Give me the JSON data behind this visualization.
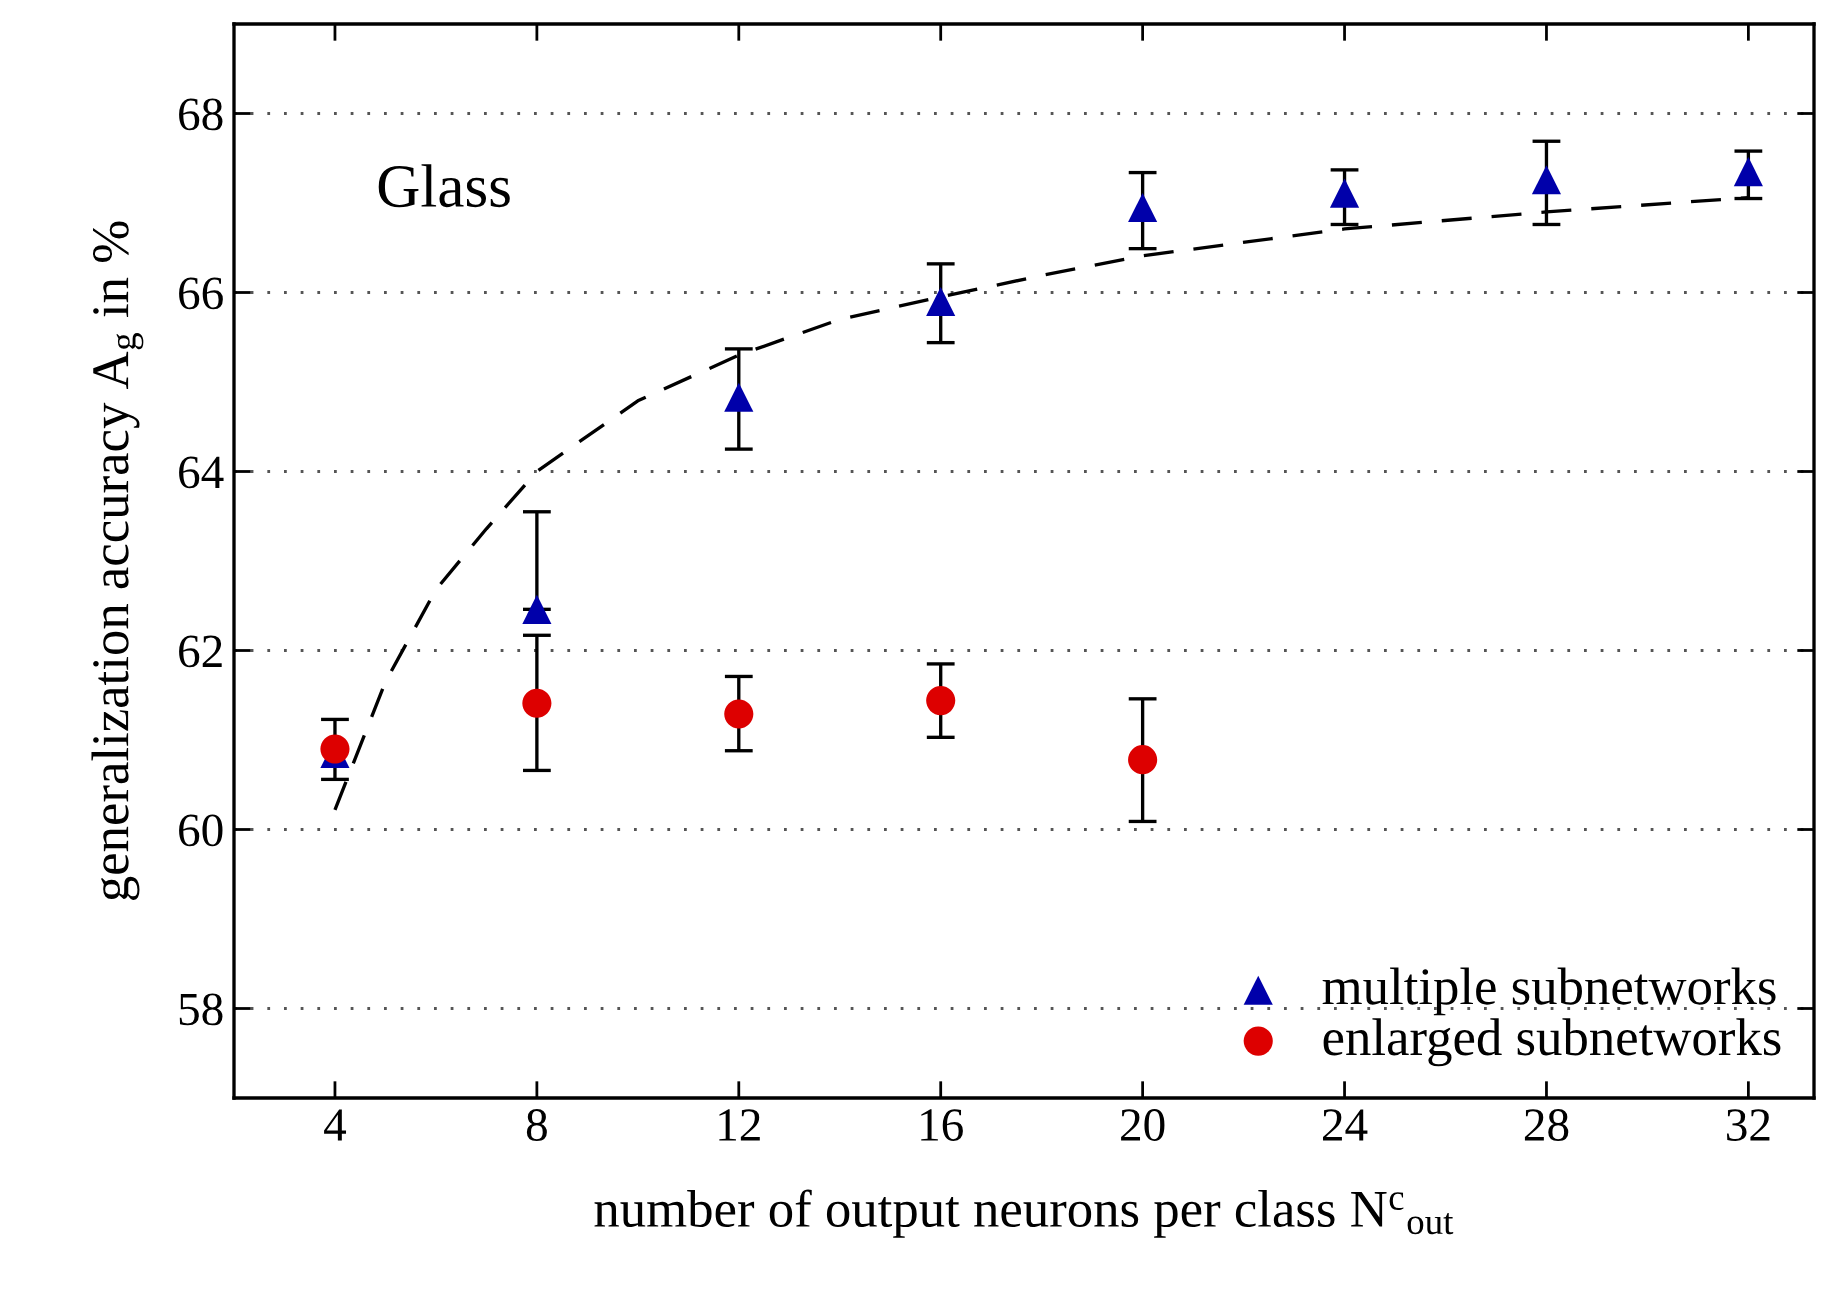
{
  "chart_data": {
    "type": "scatter",
    "xlabel": "number of output neurons per class N$^{c}$$_{out}$",
    "ylabel": "generalization accuracy A$_{g}$ in %",
    "annotations": [
      "Glass"
    ],
    "xlim": [
      2,
      33.3
    ],
    "xticks": [
      4,
      8,
      12,
      16,
      20,
      24,
      28,
      32
    ],
    "ylim": [
      57,
      69
    ],
    "yticks": [
      58,
      60,
      62,
      64,
      66,
      68
    ],
    "grid": "y",
    "legend": "bottom right",
    "series": [
      {
        "type": "line",
        "color": "#000000",
        "line_style": "dashed",
        "marker": "none",
        "x": [
          4,
          5,
          6,
          7,
          8,
          10,
          12,
          14,
          16,
          18,
          20,
          24,
          28,
          32
        ],
        "values": [
          60.22,
          61.65,
          62.68,
          63.36,
          64.0,
          64.79,
          65.3,
          65.7,
          65.95,
          66.19,
          66.41,
          66.71,
          66.9,
          67.06
        ]
      },
      {
        "name": "multiple subnetworks",
        "color": "#0000aa",
        "marker": "triangle",
        "x": [
          4,
          8,
          12,
          16,
          20,
          24,
          28,
          32
        ],
        "values": [
          60.85,
          62.46,
          64.83,
          65.9,
          66.95,
          67.11,
          67.26,
          67.35
        ],
        "errors": [
          null,
          [
            62.46,
            63.55
          ],
          [
            64.25,
            65.37
          ],
          [
            65.44,
            66.32
          ],
          [
            66.49,
            67.34
          ],
          [
            66.76,
            67.37
          ],
          [
            66.76,
            67.69
          ],
          [
            67.05,
            67.58
          ]
        ]
      },
      {
        "name": "enlarged subnetworks",
        "color": "#dd0000",
        "marker": "circle",
        "x": [
          4,
          8,
          12,
          16,
          20
        ],
        "values": [
          60.9,
          61.41,
          61.29,
          61.44,
          60.78
        ],
        "errors": [
          [
            60.56,
            61.23
          ],
          [
            60.66,
            62.17
          ],
          [
            60.88,
            61.71
          ],
          [
            61.03,
            61.85
          ],
          [
            60.09,
            61.46
          ]
        ]
      }
    ]
  }
}
